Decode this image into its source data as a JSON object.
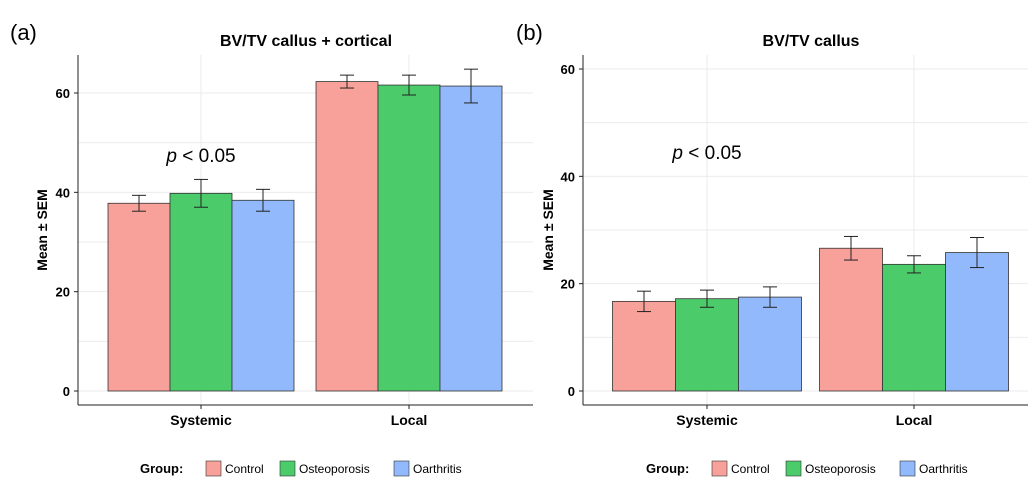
{
  "legend": {
    "title": "Group:",
    "items": [
      {
        "label": "Control",
        "color": "#F8A19A"
      },
      {
        "label": "Osteoporosis",
        "color": "#4CCB6B"
      },
      {
        "label": "Oarthritis",
        "color": "#92B9FB"
      }
    ]
  },
  "chart_data": [
    {
      "type": "bar",
      "panel_label": "(a)",
      "title": "BV/TV callus + cortical",
      "ylabel": "Mean ± SEM",
      "xlabel": "",
      "categories": [
        "Systemic",
        "Local"
      ],
      "ylim": [
        0,
        67
      ],
      "yticks": [
        0,
        20,
        40,
        60
      ],
      "grid": true,
      "annotation": {
        "italic": "p",
        "text": " < 0.05",
        "x_category": "Systemic",
        "y": 47.5
      },
      "series": [
        {
          "name": "Control",
          "color": "#F8A19A",
          "values": [
            37.8,
            62.3
          ],
          "errors": [
            1.6,
            1.3
          ]
        },
        {
          "name": "Osteoporosis",
          "color": "#4CCB6B",
          "values": [
            39.8,
            61.6
          ],
          "errors": [
            2.8,
            2.0
          ]
        },
        {
          "name": "Oarthritis",
          "color": "#92B9FB",
          "values": [
            38.4,
            61.4
          ],
          "errors": [
            2.2,
            3.4
          ]
        }
      ]
    },
    {
      "type": "bar",
      "panel_label": "(b)",
      "title": "BV/TV callus",
      "ylabel": "Mean ± SEM",
      "xlabel": "",
      "categories": [
        "Systemic",
        "Local"
      ],
      "ylim": [
        0,
        63
      ],
      "yticks": [
        0,
        20,
        40,
        60
      ],
      "grid": true,
      "annotation": {
        "italic": "p",
        "text": " < 0.05",
        "x_category": "Systemic",
        "y": 44.5
      },
      "series": [
        {
          "name": "Control",
          "color": "#F8A19A",
          "values": [
            16.7,
            26.6
          ],
          "errors": [
            1.9,
            2.2
          ]
        },
        {
          "name": "Osteoporosis",
          "color": "#4CCB6B",
          "values": [
            17.2,
            23.6
          ],
          "errors": [
            1.6,
            1.6
          ]
        },
        {
          "name": "Oarthritis",
          "color": "#92B9FB",
          "values": [
            17.5,
            25.8
          ],
          "errors": [
            1.9,
            2.8
          ]
        }
      ]
    }
  ]
}
